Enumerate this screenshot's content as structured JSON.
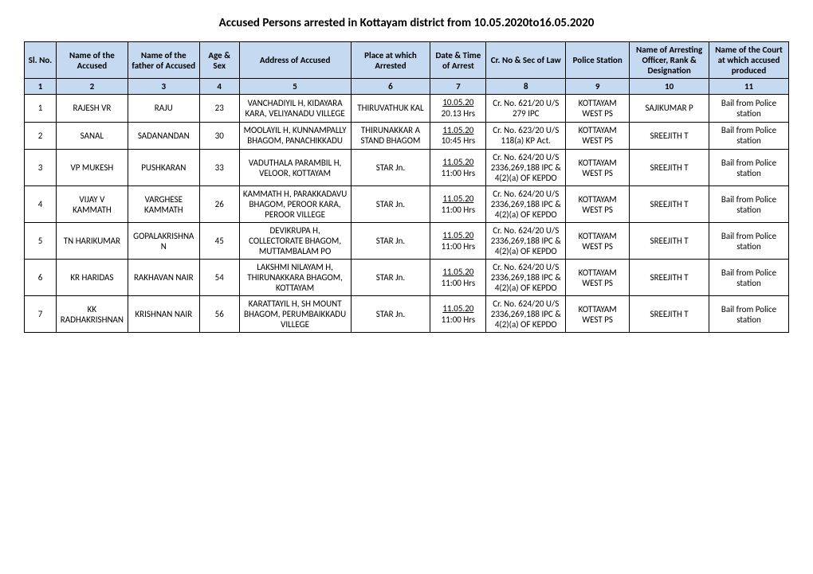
{
  "title": "Accused Persons arrested in  Kottayam  district from  10.05.2020to16.05.2020",
  "headers": {
    "c1": "Sl. No.",
    "c2": "Name of the Accused",
    "c3": "Name of the father of Accused",
    "c4": "Age & Sex",
    "c5": "Address of Accused",
    "c6": "Place at which Arrested",
    "c7": "Date & Time of Arrest",
    "c8": "Cr. No & Sec of Law",
    "c9": "Police Station",
    "c10": "Name of Arresting Officer, Rank & Designation",
    "c11": "Name of the Court at which accused produced"
  },
  "numrow": [
    "1",
    "2",
    "3",
    "4",
    "5",
    "6",
    "7",
    "8",
    "9",
    "10",
    "11"
  ],
  "rows": [
    {
      "sl": "1",
      "name": "RAJESH VR",
      "father": "RAJU",
      "age": "23",
      "address": "VANCHADIYIL H, KIDAYARA KARA, VELIYANADU VILLEGE",
      "place": "THIRUVATHUK KAL",
      "date": "10.05.20",
      "time": "20.13 Hrs",
      "crno": "Cr. No. 621/20 U/S 279 IPC",
      "station": "KOTTAYAM WEST PS",
      "officer": "SAJIKUMAR P",
      "court": "Bail from Police station"
    },
    {
      "sl": "2",
      "name": "SANAL",
      "father": "SADANANDAN",
      "age": "30",
      "address": "MOOLAYIL H, KUNNAMPALLY BHAGOM, PANACHIKKADU",
      "place": "THIRUNAKKAR A STAND BHAGOM",
      "date": "11.05.20",
      "time": "10:45 Hrs",
      "crno": "Cr. No. 623/20 U/S 118(a) KP Act.",
      "station": "KOTTAYAM WEST PS",
      "officer": "SREEJITH T",
      "court": "Bail from Police station"
    },
    {
      "sl": "3",
      "name": "VP MUKESH",
      "father": "PUSHKARAN",
      "age": "33",
      "address": "VADUTHALA PARAMBIL H, VELOOR, KOTTAYAM",
      "place": "STAR Jn.",
      "date": "11.05.20",
      "time": "11:00 Hrs",
      "crno": "Cr. No. 624/20 U/S 2336,269,188 IPC & 4(2)(a) OF KEPDO",
      "station": "KOTTAYAM WEST PS",
      "officer": "SREEJITH T",
      "court": "Bail from Police station"
    },
    {
      "sl": "4",
      "name": "VIJAY V KAMMATH",
      "father": "VARGHESE KAMMATH",
      "age": "26",
      "address": "KAMMATH H, PARAKKADAVU BHAGOM, PEROOR KARA, PEROOR VILLEGE",
      "place": "STAR Jn.",
      "date": "11.05.20",
      "time": "11:00 Hrs",
      "crno": "Cr. No. 624/20 U/S 2336,269,188 IPC & 4(2)(a) OF KEPDO",
      "station": "KOTTAYAM WEST PS",
      "officer": "SREEJITH T",
      "court": "Bail from Police station"
    },
    {
      "sl": "5",
      "name": "TN HARIKUMAR",
      "father": "GOPALAKRISHNAN",
      "age": "45",
      "address": "DEVIKRUPA H, COLLECTORATE BHAGOM, MUTTAMBALAM PO",
      "place": "STAR Jn.",
      "date": "11.05.20",
      "time": "11:00 Hrs",
      "crno": "Cr. No. 624/20 U/S 2336,269,188 IPC & 4(2)(a) OF KEPDO",
      "station": "KOTTAYAM WEST PS",
      "officer": "SREEJITH T",
      "court": "Bail from Police station"
    },
    {
      "sl": "6",
      "name": "KR HARIDAS",
      "father": "RAKHAVAN NAIR",
      "age": "54",
      "address": "LAKSHMI NILAYAM H, THIRUNAKKARA BHAGOM, KOTTAYAM",
      "place": "STAR Jn.",
      "date": "11.05.20",
      "time": "11:00 Hrs",
      "crno": "Cr. No. 624/20 U/S 2336,269,188 IPC & 4(2)(a) OF KEPDO",
      "station": "KOTTAYAM WEST PS",
      "officer": "SREEJITH T",
      "court": "Bail from Police station"
    },
    {
      "sl": "7",
      "name": "KK RADHAKRISHNAN",
      "father": "KRISHNAN NAIR",
      "age": "56",
      "address": "KARATTAYIL H, SH MOUNT BHAGOM, PERUMBAIKKADU VILLEGE",
      "place": "STAR Jn.",
      "date": "11.05.20",
      "time": "11:00 Hrs",
      "crno": "Cr. No. 624/20 U/S 2336,269,188 IPC & 4(2)(a) OF KEPDO",
      "station": "KOTTAYAM WEST PS",
      "officer": "SREEJITH T",
      "court": "Bail from Police station"
    }
  ]
}
